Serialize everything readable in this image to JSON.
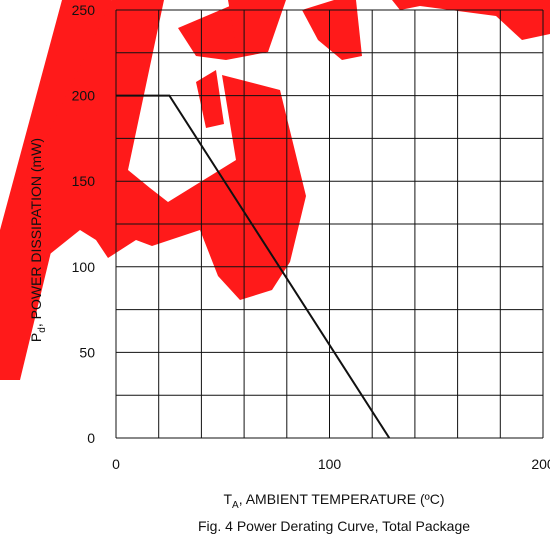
{
  "chart_data": {
    "type": "line",
    "title": "",
    "caption": "Fig. 4  Power Derating Curve, Total Package",
    "xlabel": {
      "symbol": "T",
      "subscript": "A",
      "text": ", AMBIENT TEMPERATURE (ºC)"
    },
    "ylabel": {
      "symbol": "P",
      "subscript": "d",
      "text": ", POWER DISSIPATION (mW)"
    },
    "xlim": [
      0,
      200
    ],
    "ylim": [
      0,
      250
    ],
    "x_ticks": [
      0,
      100,
      200
    ],
    "x_tick_labels": [
      "0",
      "100",
      "200"
    ],
    "y_ticks": [
      0,
      50,
      100,
      150,
      200,
      250
    ],
    "y_tick_labels": [
      "0",
      "50",
      "100",
      "150",
      "200",
      "250"
    ],
    "grid": true,
    "grid_x_step": 20,
    "grid_y_step": 25,
    "series": [
      {
        "x": [
          0,
          25,
          128
        ],
        "y": [
          200,
          200,
          0
        ]
      }
    ],
    "colors": {
      "line": "#111111",
      "grid": "#111111",
      "watermark": "#ff1a1a"
    }
  }
}
